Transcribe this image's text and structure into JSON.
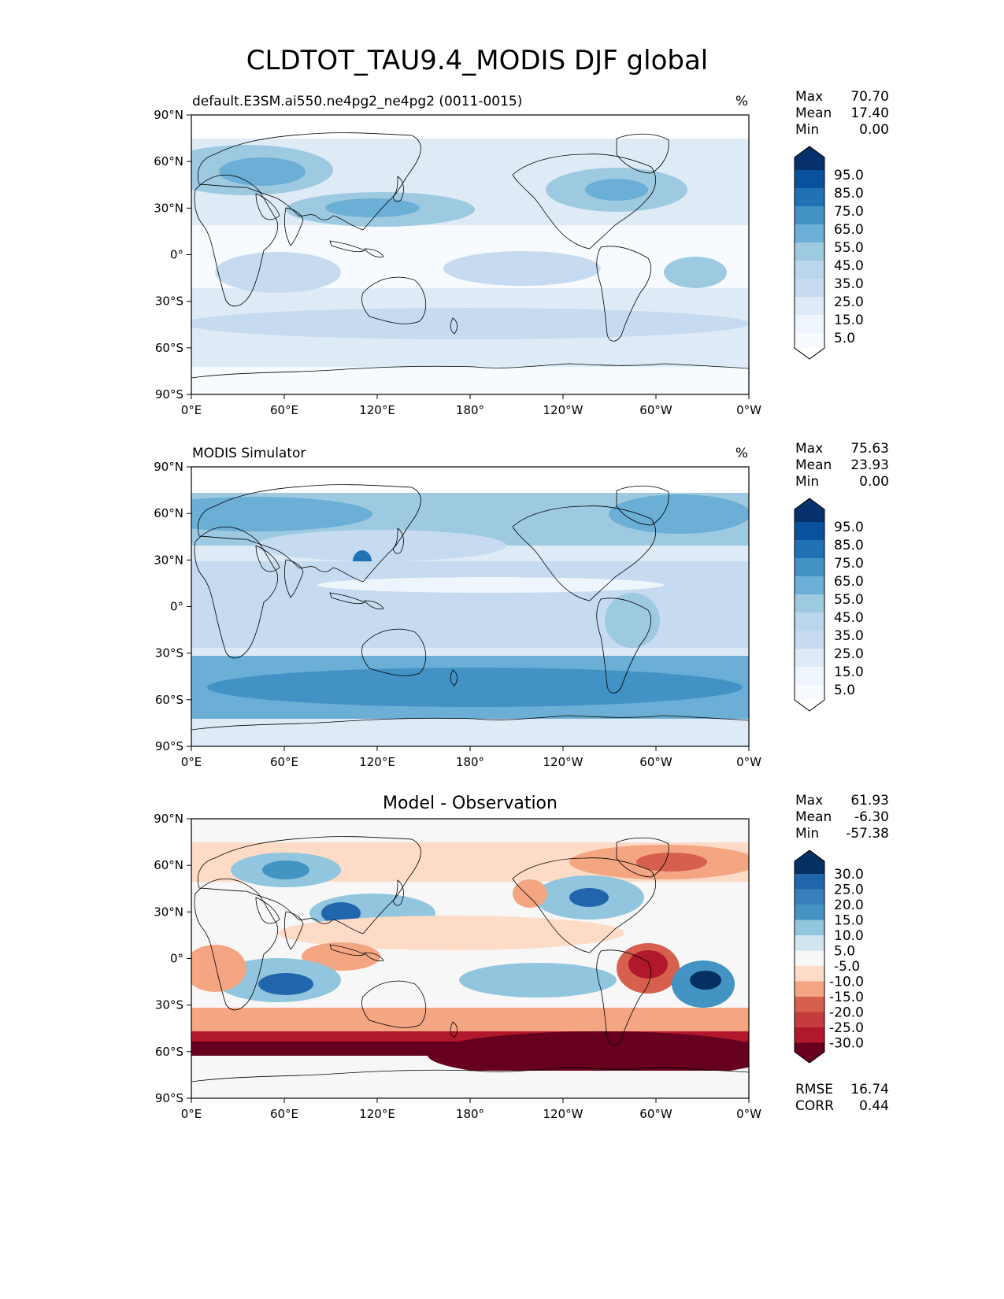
{
  "title": "CLDTOT_TAU9.4_MODIS DJF global",
  "colors": {
    "blues": [
      "#f7fbff",
      "#deebf7",
      "#c6dbef",
      "#9ecae1",
      "#6baed6",
      "#4292c6",
      "#2171b5",
      "#08519c",
      "#08306b"
    ],
    "diverging": [
      "#67001f",
      "#b2182b",
      "#d6604d",
      "#f4a582",
      "#fddbc7",
      "#f7f7f7",
      "#d1e5f0",
      "#92c5de",
      "#4393c3",
      "#2166ac",
      "#053061"
    ],
    "land_outline": "#000000"
  },
  "x_ticks": [
    "0°E",
    "60°E",
    "120°E",
    "180°",
    "120°W",
    "60°W",
    "0°W"
  ],
  "y_ticks": [
    "90°N",
    "60°N",
    "30°N",
    "0°",
    "30°S",
    "60°S",
    "90°S"
  ],
  "panels": [
    {
      "left_title": "default.E3SM.ai550.ne4pg2_ne4pg2 (0011-0015)",
      "center_title": "",
      "right_title": "%",
      "stats": [
        [
          "Max",
          "70.70"
        ],
        [
          "Mean",
          "17.40"
        ],
        [
          "Min",
          "0.00"
        ]
      ],
      "colorbar_labels": [
        "95.0",
        "85.0",
        "75.0",
        "65.0",
        "55.0",
        "45.0",
        "35.0",
        "25.0",
        "15.0",
        "5.0"
      ]
    },
    {
      "left_title": "MODIS Simulator",
      "center_title": "",
      "right_title": "%",
      "stats": [
        [
          "Max",
          "75.63"
        ],
        [
          "Mean",
          "23.93"
        ],
        [
          "Min",
          "0.00"
        ]
      ],
      "colorbar_labels": [
        "95.0",
        "85.0",
        "75.0",
        "65.0",
        "55.0",
        "45.0",
        "35.0",
        "25.0",
        "15.0",
        "5.0"
      ]
    },
    {
      "left_title": "",
      "center_title": "Model - Observation",
      "right_title": "",
      "stats": [
        [
          "Max",
          "61.93"
        ],
        [
          "Mean",
          "-6.30"
        ],
        [
          "Min",
          "-57.38"
        ]
      ],
      "colorbar_labels": [
        "30.0",
        "25.0",
        "20.0",
        "15.0",
        "10.0",
        "5.0",
        "-5.0",
        "-10.0",
        "-15.0",
        "-20.0",
        "-25.0",
        "-30.0"
      ],
      "metrics": [
        [
          "RMSE",
          "16.74"
        ],
        [
          "CORR",
          "0.44"
        ]
      ]
    }
  ]
}
